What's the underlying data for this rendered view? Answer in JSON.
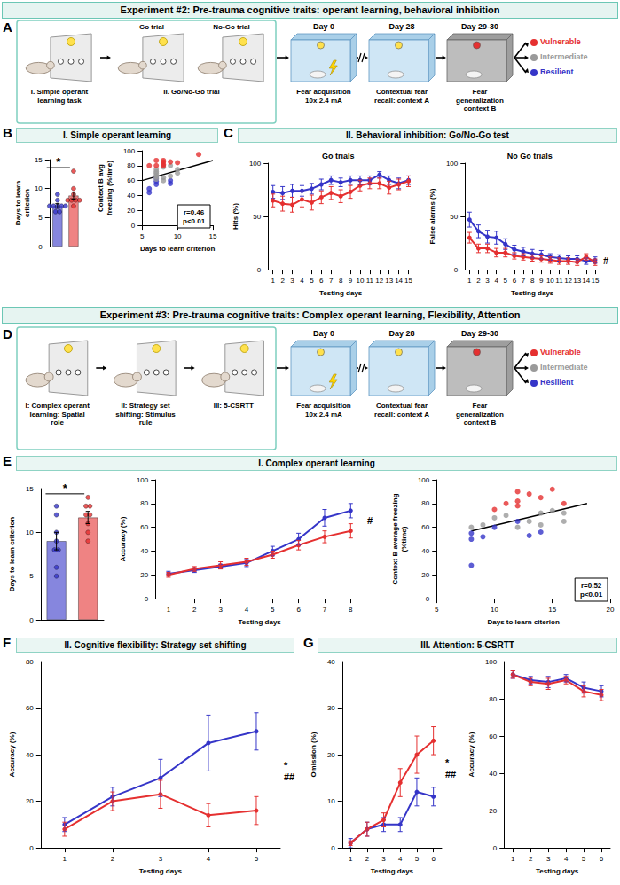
{
  "headers": [
    "Experiment #2: Pre-trauma cognitive traits: operant learning, behavioral inhibition",
    "Experiment #3: Pre-trauma cognitive traits: Complex operant learning, Flexibility, Attention"
  ],
  "schematics": [
    {
      "letter": "A",
      "training": [
        {
          "caption": "I. Simple operant learning task"
        },
        {
          "caption": "II. Go/No-Go trial",
          "trials": [
            "Go trial",
            "No-Go trial"
          ]
        }
      ],
      "fear": [
        {
          "day": "Day 0",
          "caption": "Fear acquisition 10x 2.4 mA"
        },
        {
          "day": "Day 28",
          "caption": "Contextual fear recall: context A"
        },
        {
          "day": "Day 29-30",
          "caption": "Fear generalization context B"
        }
      ],
      "outcomes": [
        {
          "label": "Vulnerable",
          "color": "#e53030"
        },
        {
          "label": "Intermediate",
          "color": "#9a9a9a"
        },
        {
          "label": "Resilient",
          "color": "#3535c8"
        }
      ]
    },
    {
      "letter": "D",
      "training": [
        {
          "caption": "I: Complex operant learning: Spatial role"
        },
        {
          "caption": "II: Strategy set shifting: Stimulus rule"
        },
        {
          "caption": "III: 5-CSRTT"
        }
      ],
      "fear": [
        {
          "day": "Day 0",
          "caption": "Fear acquisition 10x 2.4 mA"
        },
        {
          "day": "Day 28",
          "caption": "Contextual fear recall: context A"
        },
        {
          "day": "Day 29-30",
          "caption": "Fear generalization context B"
        }
      ],
      "outcomes": [
        {
          "label": "Vulnerable",
          "color": "#e53030"
        },
        {
          "label": "Intermediate",
          "color": "#9a9a9a"
        },
        {
          "label": "Resilient",
          "color": "#3535c8"
        }
      ]
    }
  ],
  "sections": [
    {
      "letter": "B",
      "title": "I. Simple operant learning"
    },
    {
      "letter": "C",
      "title": "II. Behavioral inhibition: Go/No-Go test"
    },
    {
      "letter": "E",
      "title": "I. Complex operant learning"
    },
    {
      "letter": "F",
      "title": "II. Cognitive flexibility: Strategy set shifting"
    },
    {
      "letter": "G",
      "title": "III. Attention: 5-CSRTT"
    }
  ],
  "chart_data": [
    {
      "type": "bar",
      "categories": [
        null,
        null
      ],
      "values": [
        7.0,
        8.8
      ],
      "errors": [
        0.4,
        0.6
      ],
      "colors": [
        "#3535c8",
        "#e53030"
      ],
      "points": [
        [
          6,
          6,
          7,
          7,
          7,
          7,
          7,
          8,
          9
        ],
        [
          7,
          8,
          8,
          8,
          8,
          9,
          10,
          13
        ]
      ],
      "ylabel": "Days to learn criterion",
      "ylim": [
        0,
        15
      ],
      "yticks": [
        0,
        5,
        10,
        15
      ],
      "annotations": [
        "*"
      ],
      "marker": "circle",
      "tick_labels": "y",
      "grid": false
    },
    {
      "type": "scatter",
      "xlabel": "Days to learn criterion",
      "ylabel": "Context B avg freezing (%time)",
      "xlim": [
        5,
        15
      ],
      "xticks": [
        5,
        10,
        15
      ],
      "ylim": [
        0,
        100
      ],
      "yticks": [
        0,
        20,
        40,
        60,
        80,
        100
      ],
      "series": [
        {
          "color": "#3535c8",
          "x": [
            6,
            6,
            7,
            7,
            7,
            9,
            9
          ],
          "y": [
            44,
            49,
            55,
            59,
            63,
            56,
            60
          ]
        },
        {
          "color": "#9a9a9a",
          "x": [
            7,
            7,
            7,
            7,
            7,
            7,
            8,
            8,
            8,
            9,
            9,
            10,
            10
          ],
          "y": [
            62,
            65,
            67,
            70,
            72,
            75,
            60,
            64,
            78,
            66,
            80,
            70,
            75
          ]
        },
        {
          "color": "#e53030",
          "x": [
            6,
            7,
            7,
            8,
            8,
            8,
            8,
            9,
            10,
            13
          ],
          "y": [
            80,
            80,
            87,
            80,
            82,
            85,
            87,
            85,
            84,
            95
          ]
        }
      ],
      "fit": {
        "x": [
          5,
          15
        ],
        "y": [
          60,
          87
        ]
      },
      "annotations": [
        "r=0.46",
        "p<0.01"
      ],
      "marker": "circle",
      "grid": false
    },
    {
      "type": "line",
      "title": "Go trials",
      "xlabel": "Testing days",
      "ylabel": "Hits (%)",
      "x": [
        1,
        2,
        3,
        4,
        5,
        6,
        7,
        8,
        9,
        10,
        11,
        12,
        13,
        14,
        15
      ],
      "xlim": [
        0.5,
        15.5
      ],
      "xticks": [
        1,
        2,
        3,
        4,
        5,
        6,
        7,
        8,
        9,
        10,
        11,
        12,
        13,
        14,
        15
      ],
      "ylim": [
        0,
        100
      ],
      "yticks": [
        0,
        50,
        100
      ],
      "series": [
        {
          "color": "#3535c8",
          "values": [
            73,
            72,
            74,
            74,
            76,
            80,
            84,
            82,
            84,
            84,
            84,
            89,
            84,
            81,
            84
          ],
          "errors": [
            6,
            6,
            6,
            5,
            5,
            5,
            4,
            4,
            4,
            4,
            4,
            3,
            4,
            5,
            4
          ]
        },
        {
          "color": "#e53030",
          "values": [
            65,
            62,
            61,
            66,
            63,
            68,
            72,
            69,
            73,
            79,
            81,
            81,
            77,
            80,
            83
          ],
          "errors": [
            6,
            7,
            7,
            7,
            7,
            6,
            6,
            6,
            6,
            5,
            5,
            5,
            6,
            5,
            5
          ]
        }
      ],
      "marker": "circle",
      "grid": false
    },
    {
      "type": "line",
      "title": "No Go trials",
      "xlabel": "Testing days",
      "ylabel": "False alarms (%)",
      "x": [
        1,
        2,
        3,
        4,
        5,
        6,
        7,
        8,
        9,
        10,
        11,
        12,
        13,
        14,
        15
      ],
      "xlim": [
        0.5,
        15.5
      ],
      "xticks": [
        1,
        2,
        3,
        4,
        5,
        6,
        7,
        8,
        9,
        10,
        11,
        12,
        13,
        14,
        15
      ],
      "ylim": [
        0,
        100
      ],
      "yticks": [
        0,
        50,
        100
      ],
      "series": [
        {
          "color": "#3535c8",
          "values": [
            47,
            36,
            31,
            30,
            24,
            19,
            17,
            15,
            14,
            12,
            11,
            10,
            10,
            8,
            9
          ],
          "errors": [
            7,
            6,
            6,
            6,
            5,
            4,
            4,
            4,
            4,
            3,
            3,
            3,
            3,
            3,
            3
          ]
        },
        {
          "color": "#e53030",
          "values": [
            30,
            20,
            20,
            16,
            16,
            13,
            12,
            11,
            10,
            9,
            8,
            8,
            7,
            12,
            7
          ],
          "errors": [
            5,
            4,
            4,
            4,
            4,
            3,
            3,
            3,
            3,
            3,
            3,
            3,
            3,
            3,
            3
          ]
        }
      ],
      "annotations": [
        "#"
      ],
      "marker": "circle",
      "grid": false
    },
    {
      "type": "bar",
      "categories": [
        null,
        null
      ],
      "values": [
        9.0,
        11.7
      ],
      "errors": [
        1.0,
        0.7
      ],
      "colors": [
        "#3535c8",
        "#e53030"
      ],
      "points": [
        [
          5,
          6,
          8,
          8,
          9,
          10,
          12,
          13
        ],
        [
          9,
          10,
          11,
          12,
          12,
          13,
          13,
          14
        ]
      ],
      "ylabel": "Days to learn criterion",
      "ylim": [
        0,
        15
      ],
      "yticks": [
        0,
        5,
        10,
        15
      ],
      "annotations": [
        "*"
      ],
      "marker": "circle",
      "tick_labels": "y",
      "grid": false
    },
    {
      "type": "line",
      "xlabel": "Testing days",
      "ylabel": "Accuracy (%)",
      "x": [
        1,
        2,
        3,
        4,
        5,
        6,
        7,
        8
      ],
      "xlim": [
        0.5,
        8.5
      ],
      "xticks": [
        1,
        2,
        3,
        4,
        5,
        6,
        7,
        8
      ],
      "ylim": [
        0,
        100
      ],
      "yticks": [
        0,
        20,
        40,
        60,
        80,
        100
      ],
      "series": [
        {
          "color": "#3535c8",
          "values": [
            21,
            24,
            27,
            30,
            40,
            50,
            68,
            74
          ],
          "errors": [
            2,
            2,
            2,
            3,
            4,
            5,
            7,
            6
          ]
        },
        {
          "color": "#e53030",
          "values": [
            20,
            25,
            28,
            31,
            37,
            45,
            52,
            57
          ],
          "errors": [
            2,
            2,
            3,
            3,
            3,
            4,
            5,
            6
          ]
        }
      ],
      "annotations": [
        "#"
      ],
      "marker": "circle",
      "grid": false
    },
    {
      "type": "scatter",
      "xlabel": "Days to learn citerion",
      "ylabel": "Context B average freezing (%time)",
      "xlim": [
        5,
        20
      ],
      "xticks": [
        5,
        10,
        15,
        20
      ],
      "ylim": [
        0,
        100
      ],
      "yticks": [
        0,
        20,
        40,
        60,
        80,
        100
      ],
      "series": [
        {
          "color": "#3535c8",
          "x": [
            8,
            8,
            8,
            9,
            10,
            12,
            13,
            14
          ],
          "y": [
            28,
            50,
            55,
            52,
            60,
            65,
            53,
            56
          ]
        },
        {
          "color": "#9a9a9a",
          "x": [
            8,
            9,
            10,
            11,
            12,
            13,
            14,
            14,
            15,
            16,
            16
          ],
          "y": [
            60,
            62,
            68,
            70,
            60,
            65,
            62,
            72,
            74,
            65,
            72
          ]
        },
        {
          "color": "#e53030",
          "x": [
            10,
            11,
            12,
            12,
            12,
            13,
            14,
            15,
            16
          ],
          "y": [
            75,
            80,
            78,
            82,
            90,
            88,
            85,
            92,
            80
          ]
        }
      ],
      "fit": {
        "x": [
          8,
          18
        ],
        "y": [
          57,
          80
        ]
      },
      "annotations": [
        "r=0.52",
        "p<0.01"
      ],
      "marker": "circle",
      "grid": false
    },
    {
      "type": "line",
      "xlabel": "Testing days",
      "ylabel": "Accuracy (%)",
      "x": [
        1,
        2,
        3,
        4,
        5
      ],
      "xlim": [
        0.5,
        5.5
      ],
      "xticks": [
        1,
        2,
        3,
        4,
        5
      ],
      "ylim": [
        0,
        80
      ],
      "yticks": [
        0,
        20,
        40,
        60,
        80
      ],
      "series": [
        {
          "color": "#3535c8",
          "values": [
            10,
            22,
            30,
            45,
            50
          ],
          "errors": [
            3,
            4,
            8,
            12,
            8
          ]
        },
        {
          "color": "#e53030",
          "values": [
            8,
            20,
            23,
            14,
            16
          ],
          "errors": [
            3,
            4,
            6,
            5,
            6
          ]
        }
      ],
      "annotations": [
        "*",
        "##"
      ],
      "marker": "circle",
      "grid": false
    },
    {
      "type": "line",
      "xlabel": "Testing days",
      "ylabel": "Omission (%)",
      "x": [
        1,
        2,
        3,
        4,
        5,
        6
      ],
      "xlim": [
        0.5,
        6.5
      ],
      "xticks": [
        1,
        2,
        3,
        4,
        5,
        6
      ],
      "ylim": [
        0,
        40
      ],
      "yticks": [
        0,
        10,
        20,
        30,
        40
      ],
      "series": [
        {
          "color": "#3535c8",
          "values": [
            1,
            4,
            5,
            5,
            12,
            11
          ],
          "errors": [
            1,
            1.5,
            1.5,
            1.5,
            3,
            2
          ]
        },
        {
          "color": "#e53030",
          "values": [
            1,
            4,
            6,
            14,
            20,
            23
          ],
          "errors": [
            0.5,
            1.5,
            1.5,
            3,
            4,
            3
          ]
        }
      ],
      "annotations": [
        "*",
        "##"
      ],
      "marker": "circle",
      "grid": false
    },
    {
      "type": "line",
      "xlabel": "Testing days",
      "ylabel": "Accuracy (%)",
      "x": [
        1,
        2,
        3,
        4,
        5,
        6
      ],
      "xlim": [
        0.5,
        6.5
      ],
      "xticks": [
        1,
        2,
        3,
        4,
        5,
        6
      ],
      "ylim": [
        0,
        100
      ],
      "yticks": [
        0,
        20,
        40,
        60,
        80,
        100
      ],
      "series": [
        {
          "color": "#3535c8",
          "values": [
            93,
            90,
            89,
            91,
            86,
            84
          ],
          "errors": [
            2,
            2,
            3,
            2,
            3,
            3
          ]
        },
        {
          "color": "#e53030",
          "values": [
            93,
            89,
            88,
            90,
            84,
            82
          ],
          "errors": [
            2,
            2,
            3,
            2,
            3,
            3
          ]
        }
      ],
      "marker": "circle",
      "grid": false
    }
  ]
}
